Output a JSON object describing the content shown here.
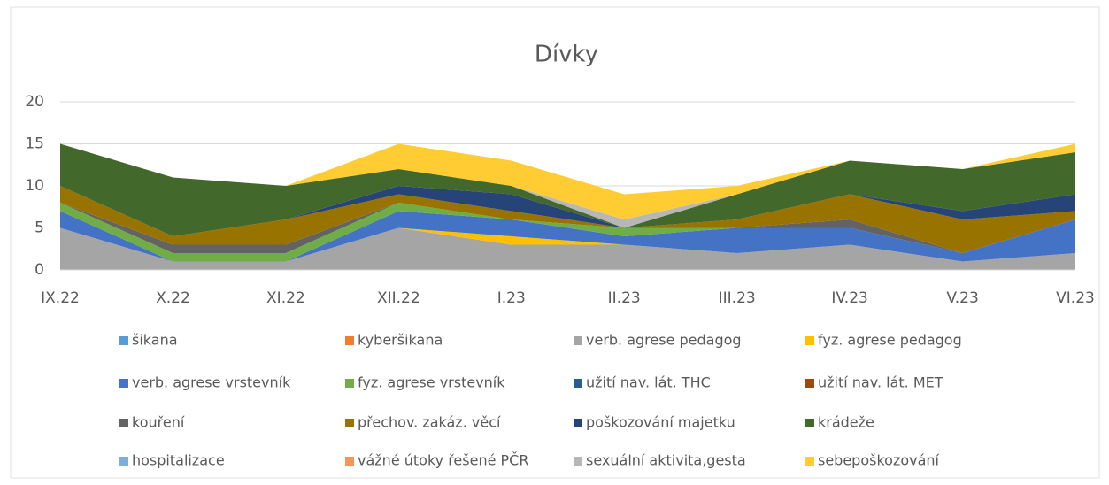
{
  "chart_data": {
    "type": "stacked_area",
    "title": "Dívky",
    "categories": [
      "IX.22",
      "X.22",
      "XI.22",
      "XII.22",
      "I.23",
      "II.23",
      "III.23",
      "IV.23",
      "V.23",
      "VI.23"
    ],
    "ylim": [
      0,
      20
    ],
    "yticks": [
      0,
      5,
      10,
      15,
      20
    ],
    "legend": "bottom",
    "series": [
      {
        "name": "šikana",
        "color": "#5b9bd5",
        "values": [
          0,
          0,
          0,
          0,
          0,
          0,
          0,
          0,
          0,
          0
        ]
      },
      {
        "name": "kyberšikana",
        "color": "#ed7d31",
        "values": [
          0,
          0,
          0,
          0,
          0,
          0,
          0,
          0,
          0,
          0
        ]
      },
      {
        "name": "verb. agrese pedagog",
        "color": "#a5a5a5",
        "values": [
          5,
          1,
          1,
          5,
          3,
          3,
          2,
          3,
          1,
          2
        ]
      },
      {
        "name": "fyz. agrese pedagog",
        "color": "#ffc000",
        "values": [
          0,
          0,
          0,
          0,
          1,
          0,
          0,
          0,
          0,
          0
        ]
      },
      {
        "name": "verb. agrese vrstevník",
        "color": "#4472c4",
        "values": [
          2,
          0,
          0,
          2,
          2,
          1,
          3,
          2,
          1,
          4
        ]
      },
      {
        "name": "fyz. agrese vrstevník",
        "color": "#70ad47",
        "values": [
          1,
          1,
          1,
          1,
          0,
          1,
          0,
          0,
          0,
          0
        ]
      },
      {
        "name": "užití nav. lát. THC",
        "color": "#255e91",
        "values": [
          0,
          0,
          0,
          0,
          0,
          0,
          0,
          0,
          0,
          0
        ]
      },
      {
        "name": "užití nav. lát. MET",
        "color": "#9e480e",
        "values": [
          0,
          0,
          0,
          0,
          0,
          0,
          0,
          0,
          0,
          0
        ]
      },
      {
        "name": "kouření",
        "color": "#636363",
        "values": [
          0,
          1,
          1,
          0,
          0,
          0,
          0,
          1,
          0,
          0
        ]
      },
      {
        "name": "přechov. zakáz. věcí",
        "color": "#997300",
        "values": [
          2,
          1,
          3,
          1,
          1,
          0,
          1,
          3,
          4,
          1
        ]
      },
      {
        "name": "poškozování majetku",
        "color": "#264478",
        "values": [
          0,
          0,
          0,
          1,
          2,
          0,
          0,
          0,
          1,
          2
        ]
      },
      {
        "name": "krádeže",
        "color": "#43682b",
        "values": [
          5,
          7,
          4,
          2,
          1,
          0,
          3,
          4,
          5,
          5
        ]
      },
      {
        "name": "hospitalizace",
        "color": "#7cafdd",
        "values": [
          0,
          0,
          0,
          0,
          0,
          0,
          0,
          0,
          0,
          0
        ]
      },
      {
        "name": "vážné útoky řešené PČR",
        "color": "#f1975a",
        "values": [
          0,
          0,
          0,
          0,
          0,
          0,
          0,
          0,
          0,
          0
        ]
      },
      {
        "name": "sexuální aktivita,gesta",
        "color": "#b7b7b7",
        "values": [
          0,
          0,
          0,
          0,
          0,
          1,
          0,
          0,
          0,
          0
        ]
      },
      {
        "name": "sebepoškozování",
        "color": "#ffcd33",
        "values": [
          0,
          0,
          0,
          3,
          3,
          3,
          1,
          0,
          0,
          1
        ]
      }
    ]
  }
}
